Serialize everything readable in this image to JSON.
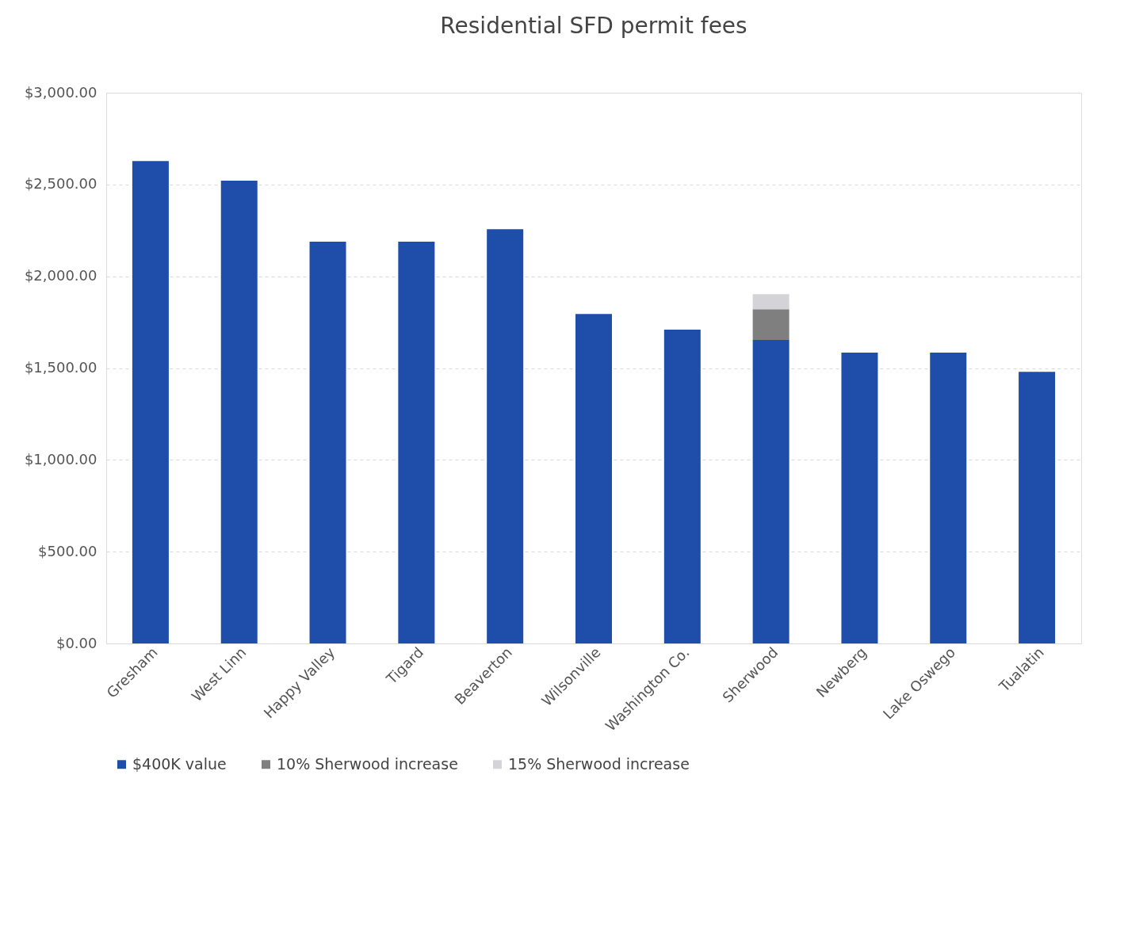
{
  "chart_data": {
    "type": "bar",
    "title": "Residential SFD permit fees",
    "stacked": true,
    "categories": [
      "Gresham",
      "West Linn",
      "Happy Valley",
      "Tigard",
      "Beaverton",
      "Wilsonville",
      "Washington Co.",
      "Sherwood",
      "Newberg",
      "Lake Oswego",
      "Tualatin"
    ],
    "series": [
      {
        "name": "$400K value",
        "color": "#1f4eaa",
        "values": [
          2628,
          2521,
          2188,
          2188,
          2257,
          1795,
          1709,
          1653,
          1584,
          1584,
          1480
        ]
      },
      {
        "name": "10% Sherwood increase",
        "color": "#7f7f7f",
        "values": [
          null,
          null,
          null,
          null,
          null,
          null,
          null,
          168,
          null,
          null,
          null
        ]
      },
      {
        "name": "15% Sherwood increase",
        "color": "#d4d4d8",
        "values": [
          null,
          null,
          null,
          null,
          null,
          null,
          null,
          82,
          null,
          null,
          null
        ]
      }
    ],
    "ylim": [
      0,
      3000
    ],
    "yticks": [
      {
        "value": 0,
        "label": "$0.00"
      },
      {
        "value": 500,
        "label": "$500.00"
      },
      {
        "value": 1000,
        "label": "$1,000.00"
      },
      {
        "value": 1500,
        "label": "$1,500.00"
      },
      {
        "value": 2000,
        "label": "$2,000.00"
      },
      {
        "value": 2500,
        "label": "$2,500.00"
      },
      {
        "value": 3000,
        "label": "$3,000.00"
      }
    ],
    "grid": "y",
    "legend": "bottom"
  }
}
